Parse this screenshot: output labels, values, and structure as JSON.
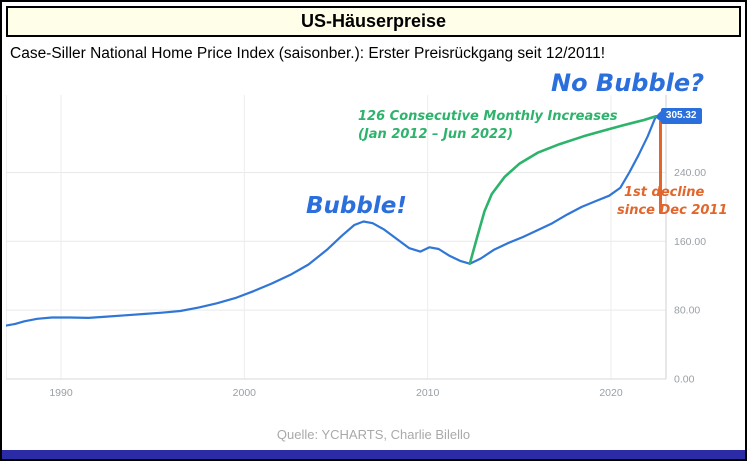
{
  "header": {
    "title": "US-Häuserpreise"
  },
  "subtitle": "Case-Siller National Home Price Index (saisonber.): Erster Preisrückgang seit 12/2011!",
  "footer": {
    "source": "Quelle: YCHARTS, Charlie Bilello"
  },
  "colors": {
    "price_line": "#3076d6",
    "increase_arc": "#2db36b",
    "decline_marker": "#e2662c",
    "annotation_blue": "#2a6fdb",
    "header_background": "#fffee9",
    "bottom_bar": "#2b2ba6",
    "axis_text": "#9aa0a6"
  },
  "chart_data": {
    "type": "line",
    "title": "",
    "xlabel": "",
    "ylabel": "",
    "xlim": [
      1987,
      2023
    ],
    "ylim": [
      0,
      330
    ],
    "x_ticks": [
      1990,
      2000,
      2010,
      2020
    ],
    "y_ticks": [
      0,
      80,
      160,
      240
    ],
    "y_tick_labels": [
      "0.00",
      "80.00",
      "160.00",
      "240.00"
    ],
    "grid": true,
    "legend": "none",
    "series": [
      {
        "name": "case-shiller-national-home-price-index",
        "color": "#3076d6",
        "width": 2.2,
        "points": [
          [
            1987.0,
            62
          ],
          [
            1987.5,
            64
          ],
          [
            1988.0,
            67
          ],
          [
            1988.7,
            70
          ],
          [
            1989.5,
            71.5
          ],
          [
            1990.5,
            71.5
          ],
          [
            1991.5,
            71
          ],
          [
            1992.5,
            72.5
          ],
          [
            1993.5,
            74
          ],
          [
            1994.5,
            75.5
          ],
          [
            1995.5,
            77
          ],
          [
            1996.5,
            79
          ],
          [
            1997.5,
            83
          ],
          [
            1998.5,
            88
          ],
          [
            1999.5,
            94
          ],
          [
            2000.5,
            102
          ],
          [
            2001.5,
            111
          ],
          [
            2002.5,
            121
          ],
          [
            2003.5,
            133
          ],
          [
            2004.5,
            150
          ],
          [
            2005.3,
            166
          ],
          [
            2006.0,
            179
          ],
          [
            2006.5,
            183
          ],
          [
            2007.0,
            181
          ],
          [
            2007.6,
            174
          ],
          [
            2008.3,
            163
          ],
          [
            2009.0,
            152
          ],
          [
            2009.6,
            148
          ],
          [
            2010.1,
            153
          ],
          [
            2010.6,
            151
          ],
          [
            2011.2,
            143
          ],
          [
            2011.8,
            137
          ],
          [
            2012.3,
            134
          ],
          [
            2012.9,
            140
          ],
          [
            2013.6,
            150
          ],
          [
            2014.4,
            158
          ],
          [
            2015.2,
            165
          ],
          [
            2016.0,
            173
          ],
          [
            2016.8,
            181
          ],
          [
            2017.6,
            191
          ],
          [
            2018.4,
            200
          ],
          [
            2019.2,
            207
          ],
          [
            2019.9,
            213
          ],
          [
            2020.5,
            222
          ],
          [
            2021.0,
            240
          ],
          [
            2021.5,
            260
          ],
          [
            2022.0,
            282
          ],
          [
            2022.45,
            305.32
          ],
          [
            2022.8,
            299
          ]
        ]
      },
      {
        "name": "126-consecutive-monthly-increases-arc",
        "color": "#2db36b",
        "width": 2.6,
        "points": [
          [
            2012.3,
            134
          ],
          [
            2012.7,
            165
          ],
          [
            2013.1,
            195
          ],
          [
            2013.5,
            215
          ],
          [
            2014.2,
            235
          ],
          [
            2015.0,
            250
          ],
          [
            2016.0,
            263
          ],
          [
            2017.2,
            273
          ],
          [
            2018.5,
            282
          ],
          [
            2019.5,
            288
          ],
          [
            2020.7,
            295
          ],
          [
            2021.8,
            301
          ],
          [
            2022.45,
            305.32
          ]
        ]
      }
    ],
    "decline_marker": {
      "color": "#e2662c",
      "x": 2022.7,
      "y_from": 300,
      "y_to": 192
    },
    "last_value": {
      "label": "305.32",
      "x": 2022.45,
      "y": 305.32
    },
    "annotations": {
      "bubble": {
        "text": "Bubble!",
        "color": "#2a6fdb"
      },
      "no_bubble": {
        "text": "No Bubble?",
        "color": "#2a6fdb"
      },
      "increases_line1": {
        "text": "126 Consecutive Monthly Increases",
        "color": "#2db36b"
      },
      "increases_line2": {
        "text": "(Jan 2012 – Jun 2022)",
        "color": "#2db36b"
      },
      "decline_line1": {
        "text": "1st decline",
        "color": "#e2662c"
      },
      "decline_line2": {
        "text": "since Dec 2011",
        "color": "#e2662c"
      }
    }
  }
}
